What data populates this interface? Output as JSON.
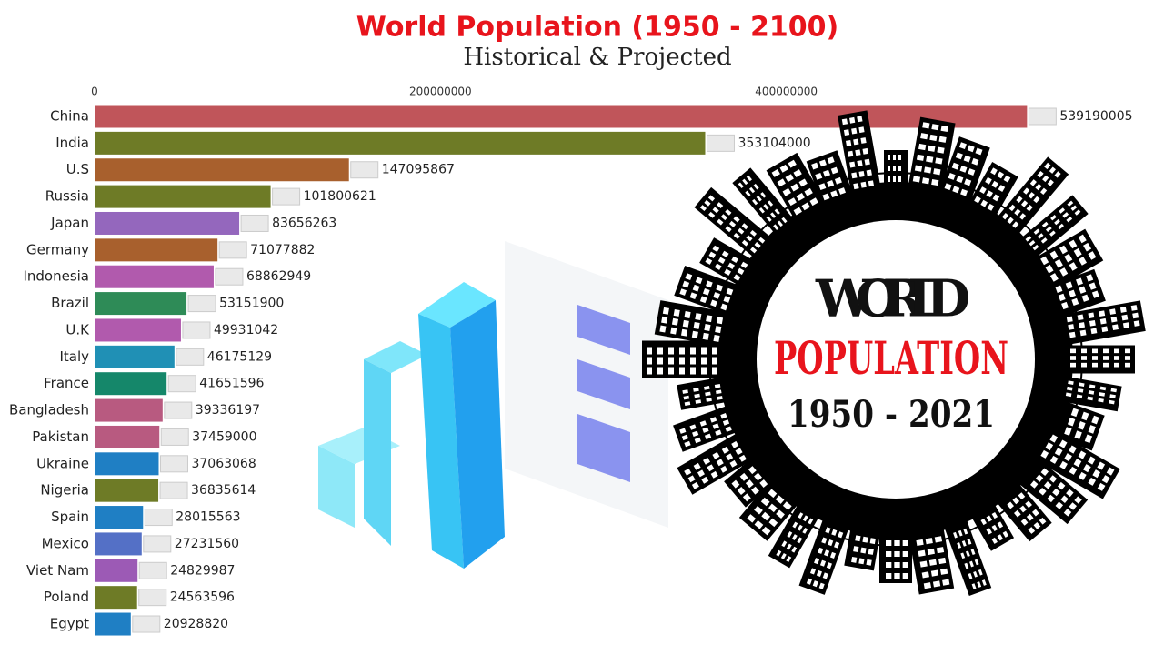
{
  "chart_data": {
    "type": "hbar",
    "title": "World Population (1950 - 2100)",
    "subtitle": "Historical & Projected",
    "categories": [
      "China",
      "India",
      "U.S",
      "Russia",
      "Japan",
      "Germany",
      "Indonesia",
      "Brazil",
      "U.K",
      "Italy",
      "France",
      "Bangladesh",
      "Pakistan",
      "Ukraine",
      "Nigeria",
      "Spain",
      "Mexico",
      "Viet Nam",
      "Poland",
      "Egypt"
    ],
    "values": [
      539190005,
      353104000,
      147095867,
      101800621,
      83656263,
      71077882,
      68862949,
      53151900,
      49931042,
      46175129,
      41651596,
      39336197,
      37459000,
      37063068,
      36835614,
      28015563,
      27231560,
      24829987,
      24563596,
      20928820
    ],
    "colors": [
      "#c0555a",
      "#6e7b26",
      "#a8602d",
      "#6e7b26",
      "#9467bd",
      "#a8602d",
      "#b15aad",
      "#2e8b57",
      "#b15aad",
      "#2090b5",
      "#15876a",
      "#b85a80",
      "#b85a80",
      "#1f7fc4",
      "#6e7b26",
      "#1f7fc4",
      "#5470c6",
      "#9c5ab5",
      "#6e7b26",
      "#1f7fc4"
    ],
    "xlim": [
      0,
      600000000
    ],
    "xticks": [
      0,
      200000000,
      400000000
    ]
  },
  "poster": {
    "line1": "WORLD",
    "line2": "POPULATION",
    "line3": "1950 - 2021"
  }
}
